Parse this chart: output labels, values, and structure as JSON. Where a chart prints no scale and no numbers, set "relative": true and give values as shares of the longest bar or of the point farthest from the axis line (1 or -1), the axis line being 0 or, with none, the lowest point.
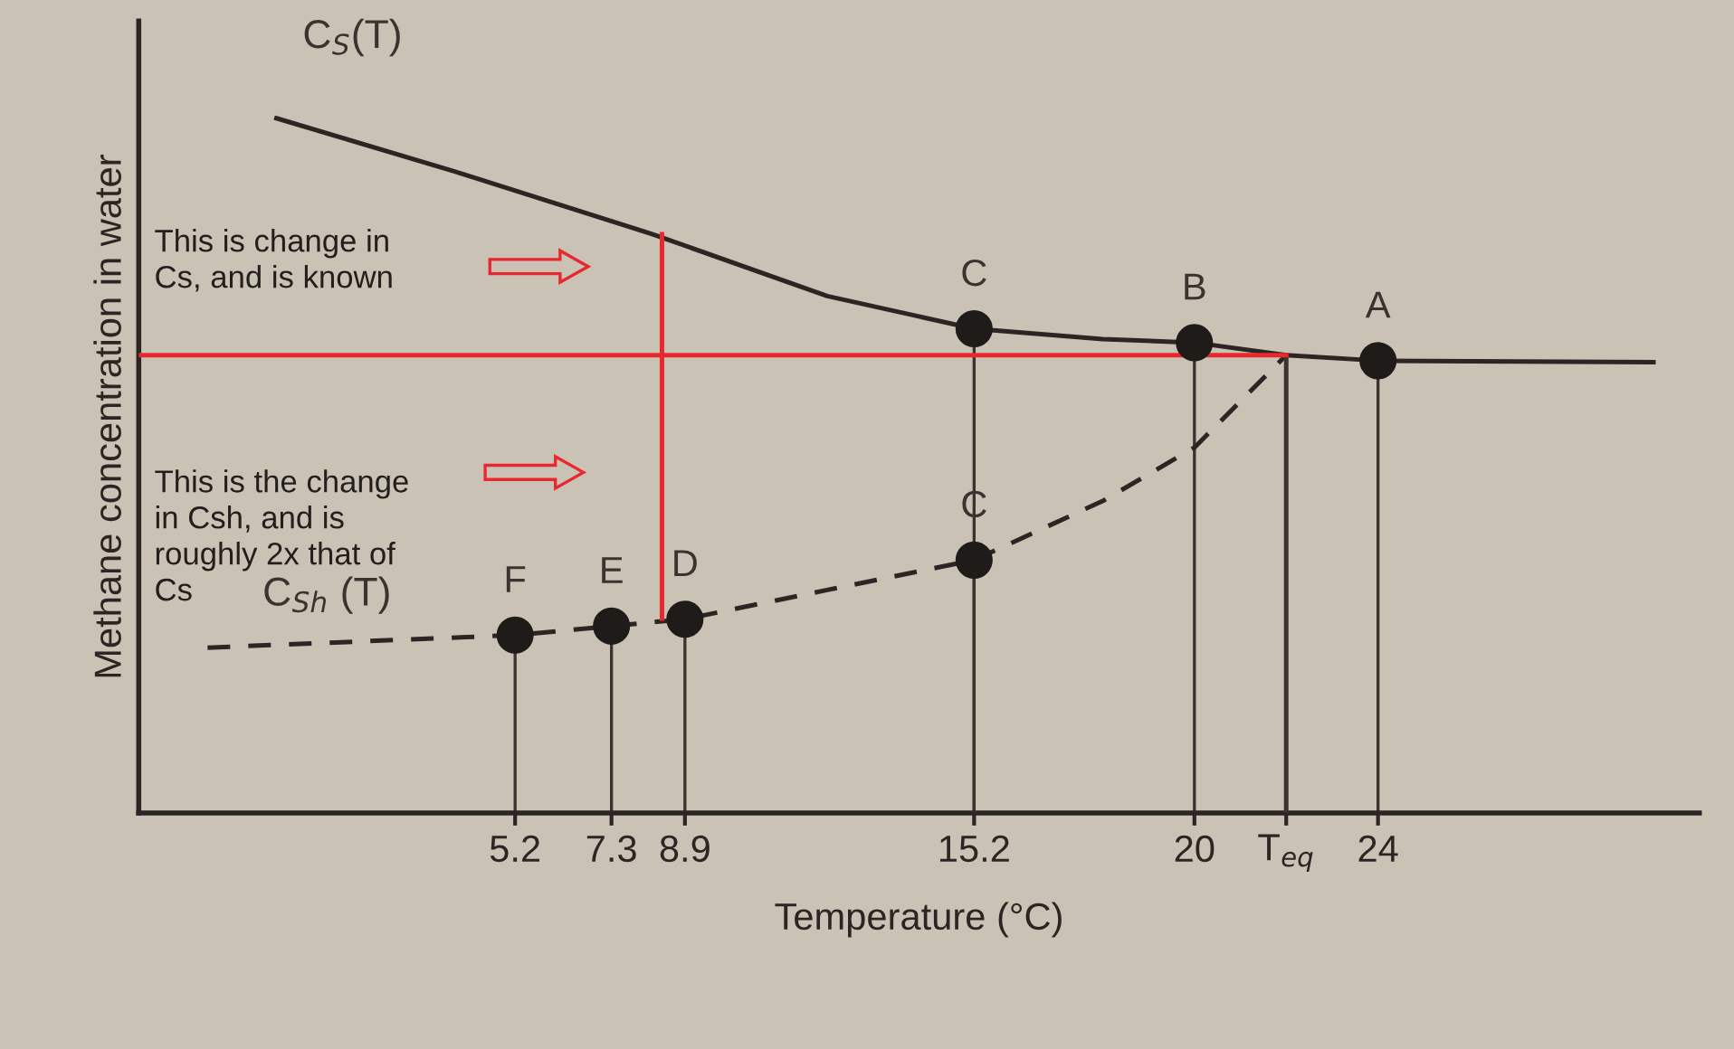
{
  "chart_data": {
    "type": "line",
    "relative": true,
    "xlabel": "Temperature (°C)",
    "ylabel": "Methane concentration in water",
    "xlim": [
      -3,
      31
    ],
    "xticks": [
      5.2,
      7.3,
      8.9,
      15.2,
      20,
      {
        "value": 22,
        "label": "T$_{eq}$"
      },
      24
    ],
    "grid": false,
    "tick_labels": "x",
    "series": [
      {
        "color": "#2b2623",
        "line_style": "solid",
        "marker": "none",
        "x": [
          0,
          3.9,
          8.2,
          12,
          15.2,
          18,
          20,
          22,
          24,
          30
        ],
        "values": [
          1.0,
          0.923,
          0.833,
          0.744,
          0.697,
          0.682,
          0.677,
          0.659,
          0.651,
          0.649
        ]
      },
      {
        "color": "#2b2623",
        "line_style": "dashed",
        "marker": "none",
        "x": [
          -1.5,
          5.2,
          7.3,
          8.9,
          12,
          15.2,
          18,
          20,
          22
        ],
        "values": [
          0.238,
          0.256,
          0.269,
          0.279,
          0.321,
          0.364,
          0.449,
          0.526,
          0.659
        ]
      },
      {
        "type": "scatter",
        "color": "#1e1b19",
        "marker": "circle",
        "x": [
          5.2,
          7.3,
          8.9,
          15.2,
          15.2,
          20,
          24
        ],
        "values": [
          0.256,
          0.269,
          0.279,
          0.364,
          0.697,
          0.677,
          0.651
        ]
      },
      {
        "type": "line",
        "color": "#3a3430",
        "line_style": "solid",
        "marker": "none",
        "x": [
          22,
          22
        ],
        "values": [
          0.659,
          0
        ]
      },
      {
        "type": "line",
        "color": "#e8282e",
        "line_style": "solid",
        "marker": "none",
        "x": [
          -3,
          22
        ],
        "values": [
          0.659,
          0.659
        ]
      },
      {
        "type": "line",
        "color": "#e8282e",
        "line_style": "solid",
        "marker": "none",
        "x": [
          8.4,
          8.4
        ],
        "values": [
          0.833,
          0.28
        ]
      }
    ],
    "annotations": [
      "C$_{S}$(T)",
      {
        "text": "C$_{Sh}$ (T)",
        "x": 2.2,
        "y": 0.25
      },
      {
        "text": "F",
        "x": 5.2,
        "y": 0.256
      },
      {
        "text": "E",
        "x": 7.3,
        "y": 0.269
      },
      {
        "text": "D",
        "x": 8.9,
        "y": 0.279
      },
      {
        "text": "C",
        "x": 15.2,
        "y": 0.364
      },
      {
        "text": "C",
        "x": 15.2,
        "y": 0.697
      },
      {
        "text": "B",
        "x": 20,
        "y": 0.677
      },
      {
        "text": "A",
        "x": 24,
        "y": 0.651
      },
      "This is change in\nCs, and is known",
      "This is the change\nin Csh, and is\nroughly 2x that of\nCs"
    ]
  }
}
